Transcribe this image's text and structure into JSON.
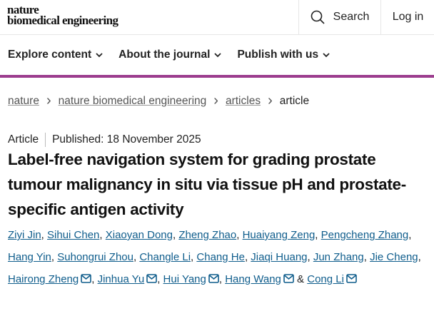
{
  "header": {
    "logo_line1": "nature",
    "logo_line2": "biomedical engineering",
    "search_label": "Search",
    "login_label": "Log in"
  },
  "nav": {
    "items": [
      {
        "label": "Explore content"
      },
      {
        "label": "About the journal"
      },
      {
        "label": "Publish with us"
      }
    ]
  },
  "accent_color": "#9c3d8e",
  "breadcrumb": [
    {
      "label": "nature"
    },
    {
      "label": "nature biomedical engineering"
    },
    {
      "label": "articles"
    },
    {
      "label": "article"
    }
  ],
  "article": {
    "type": "Article",
    "published": "Published: 18 November 2025",
    "title": "Label-free navigation system for grading prostate tumour malignancy in situ via tissue pH and prostate-specific antigen activity",
    "authors": [
      {
        "name": "Ziyi Jin",
        "email": false
      },
      {
        "name": "Sihui Chen",
        "email": false
      },
      {
        "name": "Xiaoyan Dong",
        "email": false
      },
      {
        "name": "Zheng Zhao",
        "email": false
      },
      {
        "name": "Huaiyang Zeng",
        "email": false
      },
      {
        "name": "Pengcheng Zhang",
        "email": false
      },
      {
        "name": "Hang Yin",
        "email": false
      },
      {
        "name": "Suhongrui Zhou",
        "email": false
      },
      {
        "name": "Changle Li",
        "email": false
      },
      {
        "name": "Chang He",
        "email": false
      },
      {
        "name": "Jiaqi Huang",
        "email": false
      },
      {
        "name": "Jun Zhang",
        "email": false
      },
      {
        "name": "Jie Cheng",
        "email": false
      },
      {
        "name": "Hairong Zheng",
        "email": true
      },
      {
        "name": "Jinhua Yu",
        "email": true
      },
      {
        "name": "Hui Yang",
        "email": true
      },
      {
        "name": "Hang Wang",
        "email": true
      },
      {
        "name": "Cong Li",
        "email": true
      }
    ],
    "last_separator": "&"
  }
}
